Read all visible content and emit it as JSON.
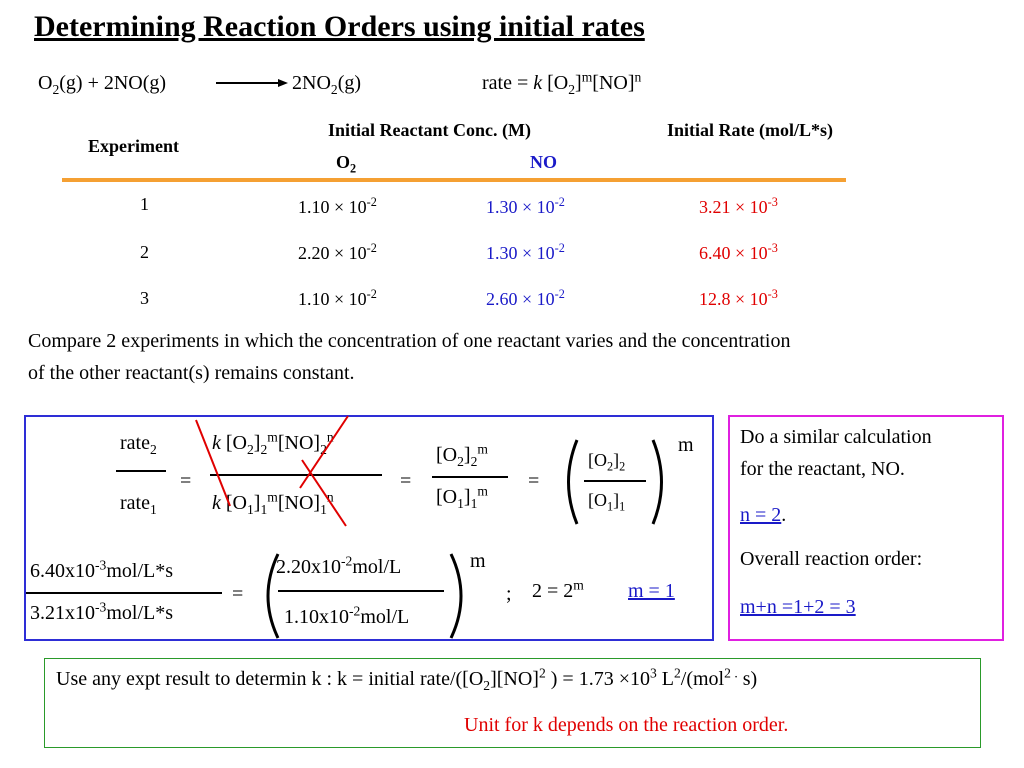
{
  "title": "Determining Reaction Orders using initial rates",
  "reaction": {
    "o2": "O",
    "o2_sub": "2",
    "o2_state": "(g)",
    "plus": " + 2NO",
    "no_state": "(g)",
    "product": "2NO",
    "product_sub": "2",
    "product_state": "(g)"
  },
  "rate_law": {
    "prefix": "rate = ",
    "k": "k",
    "o2": " [O",
    "sub2": "2",
    "close": "]",
    "m": "m",
    "no": "[NO]",
    "n": "n"
  },
  "table": {
    "header_experiment": "Experiment",
    "header_conc": "Initial Reactant Conc. (M)",
    "header_rate": "Initial Rate (mol/L*s)",
    "sub_o2": "O",
    "sub_o2_sub": "2",
    "sub_no": "NO",
    "rows": [
      {
        "exp": "1",
        "o2": "1.10 × 10",
        "o2_exp": "-2",
        "no": "1.30 × 10",
        "no_exp": "-2",
        "rate": "3.21 × 10",
        "rate_exp": "-3"
      },
      {
        "exp": "2",
        "o2": "2.20 × 10",
        "o2_exp": "-2",
        "no": "1.30 × 10",
        "no_exp": "-2",
        "rate": "6.40 × 10",
        "rate_exp": "-3"
      },
      {
        "exp": "3",
        "o2": "1.10 × 10",
        "o2_exp": "-2",
        "no": "2.60 × 10",
        "no_exp": "-2",
        "rate": "12.8 × 10",
        "rate_exp": "-3"
      }
    ]
  },
  "instructions": {
    "line1": "Compare 2 experiments in which the concentration of one reactant varies and the concentration",
    "line2": "of the other reactant(s) remains constant."
  },
  "derivation": {
    "rate2": "rate",
    "rate2_sub": "2",
    "rate1": "rate",
    "rate1_sub": "1",
    "eq": "=",
    "k": "k",
    "o2_bracket": " [O",
    "two": "2",
    "one": "1",
    "m": "m",
    "n": "n",
    "no_open": "[NO]",
    "ratio_o2_top": "[O",
    "ratio_o2_bot": "[O",
    "val_num": "6.40x10",
    "val_num_exp": "-3",
    "val_unit": "mol/L*s",
    "val_den": "3.21x10",
    "val_den_exp": "-3",
    "conc_num": "2.20x10",
    "conc_num_exp": "-2",
    "conc_unit": "mol/L",
    "conc_den": "1.10x10",
    "conc_den_exp": "-2",
    "semicolon": ";",
    "two_eq": "2 = 2",
    "m_result": "m = 1"
  },
  "side_panel": {
    "line1": "Do a similar calculation",
    "line2": "for the reactant, NO.",
    "n_result": "n = 2",
    "period": ".",
    "overall": "Overall reaction order:",
    "total": "m+n =1+2 = 3"
  },
  "footer": {
    "line_prefix": "Use any expt result to determin k :  k = initial rate/([O",
    "sub2": "2",
    "no": "][NO]",
    "sup2": "2",
    "rest": " ) = 1.73 ×10",
    "sup3": "3",
    "l": " L",
    "l_sup": "2",
    "mol": "/(mol",
    "mol_sup": "2 .",
    "s": " s)",
    "note": "Unit for k depends on the reaction order."
  },
  "colors": {
    "blue": "#1a1ac8",
    "red": "#e00000",
    "orange": "#f5a033",
    "green": "#2a9a2a",
    "pink": "#e020e0",
    "box_blue": "#2e2ed6"
  }
}
